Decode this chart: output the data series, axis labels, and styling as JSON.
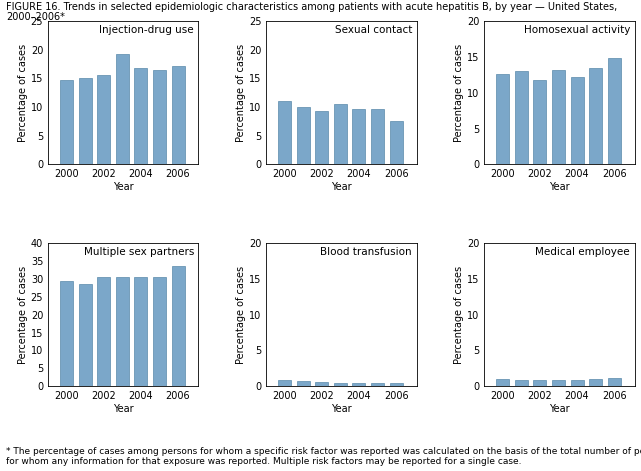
{
  "years": [
    2000,
    2001,
    2002,
    2003,
    2004,
    2005,
    2006
  ],
  "subplots": [
    {
      "title": "Injection-drug use",
      "values": [
        14.8,
        15.1,
        15.6,
        19.3,
        16.8,
        16.4,
        17.1
      ],
      "ylim": [
        0,
        25
      ],
      "yticks": [
        0,
        5,
        10,
        15,
        20,
        25
      ]
    },
    {
      "title": "Sexual contact",
      "values": [
        11.0,
        10.1,
        9.4,
        10.6,
        9.7,
        9.7,
        7.6
      ],
      "ylim": [
        0,
        25
      ],
      "yticks": [
        0,
        5,
        10,
        15,
        20,
        25
      ]
    },
    {
      "title": "Homosexual activity",
      "values": [
        12.6,
        13.1,
        11.8,
        13.2,
        12.2,
        13.4,
        14.8
      ],
      "ylim": [
        0,
        20
      ],
      "yticks": [
        0,
        5,
        10,
        15,
        20
      ]
    },
    {
      "title": "Multiple sex partners",
      "values": [
        29.5,
        28.5,
        30.6,
        30.5,
        30.5,
        30.5,
        33.5
      ],
      "ylim": [
        0,
        40
      ],
      "yticks": [
        0,
        5,
        10,
        15,
        20,
        25,
        30,
        35,
        40
      ]
    },
    {
      "title": "Blood transfusion",
      "values": [
        0.9,
        0.7,
        0.6,
        0.5,
        0.5,
        0.5,
        0.5
      ],
      "ylim": [
        0,
        20
      ],
      "yticks": [
        0,
        5,
        10,
        15,
        20
      ]
    },
    {
      "title": "Medical employee",
      "values": [
        1.0,
        0.9,
        0.8,
        0.8,
        0.9,
        1.0,
        1.1
      ],
      "ylim": [
        0,
        20
      ],
      "yticks": [
        0,
        5,
        10,
        15,
        20
      ]
    }
  ],
  "bar_color": "#7ba7c9",
  "bar_edge_color": "#5a8aaa",
  "xlabel": "Year",
  "ylabel": "Percentage of cases",
  "xticks": [
    2000,
    2002,
    2004,
    2006
  ],
  "title_line1": "FIGURE 16. Trends in selected epidemiologic characteristics among patients with acute hepatitis B, by year — United States,",
  "title_line2": "2000–2006*",
  "footnote": "* The percentage of cases among persons for whom a specific risk factor was reported was calculated on the basis of the total number of persons\nfor whom any information for that exposure was reported. Multiple risk factors may be reported for a single case.",
  "title_fontsize": 7.0,
  "axis_label_fontsize": 7.0,
  "tick_fontsize": 7.0,
  "subplot_title_fontsize": 7.5,
  "footnote_fontsize": 6.5
}
